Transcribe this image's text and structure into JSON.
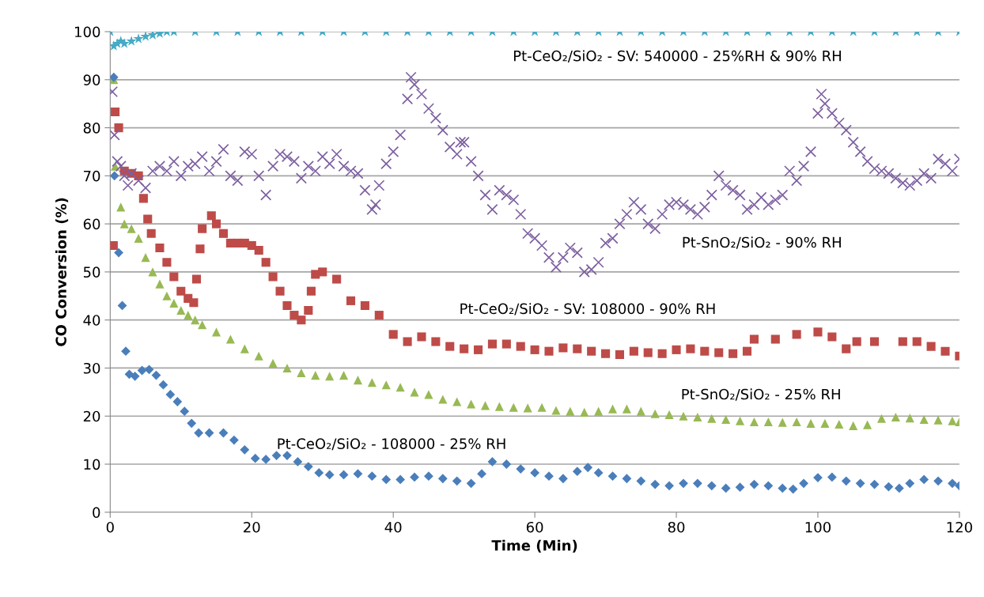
{
  "chart_data": {
    "type": "scatter",
    "xlabel": "Time (Min)",
    "ylabel": "CO Conversion (%)",
    "xlim": [
      0,
      120
    ],
    "xticks": [
      0,
      20,
      40,
      60,
      80,
      100,
      120
    ],
    "ylim": [
      0,
      100
    ],
    "yticks": [
      0,
      10,
      20,
      30,
      40,
      50,
      60,
      70,
      80,
      90,
      100
    ],
    "grid": "y",
    "series": [
      {
        "name": "Pt-CeO₂/SiO₂ - SV: 540000 - 25%RH & 90% RH",
        "color": "#46aac5",
        "marker": "star",
        "x": [
          0,
          0.5,
          1,
          1.5,
          2,
          3,
          4,
          5,
          6,
          7,
          8,
          9,
          12,
          15,
          18,
          21,
          24,
          27,
          30,
          33,
          36,
          39,
          42,
          45,
          48,
          51,
          54,
          57,
          60,
          63,
          66,
          69,
          72,
          75,
          78,
          81,
          84,
          87,
          90,
          93,
          96,
          99,
          102,
          105,
          108,
          111,
          114,
          117,
          120
        ],
        "values": [
          100,
          97,
          97.5,
          98,
          97.5,
          98,
          98.5,
          99,
          99.3,
          99.6,
          100,
          100,
          100,
          100,
          100,
          100,
          100,
          100,
          100,
          100,
          100,
          100,
          100,
          100,
          100,
          100,
          100,
          100,
          100,
          100,
          100,
          100,
          100,
          100,
          100,
          100,
          100,
          100,
          100,
          100,
          100,
          100,
          100,
          100,
          100,
          100,
          100,
          100,
          100
        ]
      },
      {
        "name": "Pt-SnO₂/SiO₂ - 90% RH",
        "color": "#7d60a0",
        "marker": "cross",
        "x": [
          0.3,
          0.6,
          1,
          1.5,
          2,
          2.5,
          3,
          4,
          5,
          6,
          7,
          8,
          9,
          10,
          11,
          12,
          13,
          14,
          15,
          16,
          17,
          18,
          19,
          20,
          21,
          22,
          23,
          24,
          25,
          26,
          27,
          28,
          29,
          30,
          31,
          32,
          33,
          34,
          35,
          36,
          37,
          37.5,
          38,
          39,
          40,
          41,
          42,
          42.5,
          43,
          44,
          45,
          46,
          47,
          48,
          49,
          49.5,
          50,
          51,
          52,
          53,
          54,
          55,
          56,
          57,
          58,
          59,
          60,
          61,
          62,
          63,
          64,
          65,
          66,
          67,
          68,
          69,
          70,
          71,
          72,
          73,
          74,
          75,
          76,
          77,
          78,
          79,
          80,
          81,
          82,
          83,
          84,
          85,
          86,
          87,
          88,
          89,
          90,
          91,
          92,
          93,
          94,
          95,
          96,
          97,
          98,
          99,
          100,
          100.5,
          101,
          102,
          103,
          104,
          105,
          106,
          107,
          108,
          109,
          110,
          111,
          112,
          113,
          114,
          115,
          116,
          117,
          118,
          119,
          120
        ],
        "values": [
          87.5,
          78.5,
          73,
          72,
          70,
          68,
          70.5,
          69,
          67.5,
          71,
          72,
          71,
          73,
          70,
          72,
          72.5,
          74,
          71,
          73,
          75.5,
          70,
          69,
          75,
          74.5,
          70,
          66,
          72,
          74.5,
          74,
          73,
          69.5,
          72,
          71,
          74,
          72.5,
          74.5,
          72,
          71,
          70.5,
          67,
          63,
          64,
          68,
          72.5,
          75,
          78.5,
          86,
          90.5,
          89,
          87,
          84,
          82,
          79.5,
          76,
          74.5,
          77,
          77,
          73,
          70,
          66,
          63,
          67,
          66,
          65,
          62,
          58,
          57,
          55.5,
          53,
          51,
          53,
          55,
          54,
          50,
          50.5,
          52,
          56,
          57,
          60,
          62,
          64.5,
          63,
          60,
          59,
          62,
          64,
          64.5,
          64,
          63,
          62,
          63.5,
          66,
          70,
          68,
          67,
          66,
          63,
          64,
          65.5,
          64,
          65,
          66,
          71,
          69,
          72,
          75,
          83,
          87,
          85,
          83,
          81,
          79.5,
          77,
          75,
          73,
          71.5,
          71,
          70.5,
          69.5,
          68.5,
          68,
          69,
          70.5,
          69.5,
          73.5,
          72.5,
          71,
          73.5
        ]
      },
      {
        "name": "Pt-CeO₂/SiO₂ - SV: 108000 - 90% RH",
        "color": "#be4b48",
        "marker": "square",
        "x": [
          0.45,
          0.7,
          1.2,
          2,
          3,
          4,
          4.7,
          5.3,
          5.8,
          7,
          8,
          9,
          10,
          11,
          11.8,
          12.2,
          12.7,
          13,
          14.3,
          15,
          16,
          17,
          18,
          19,
          20,
          21,
          22,
          23,
          24,
          25,
          26,
          27,
          28,
          28.4,
          29,
          30,
          32,
          34,
          36,
          38,
          40,
          42,
          44,
          46,
          48,
          50,
          52,
          54,
          56,
          58,
          60,
          62,
          64,
          66,
          68,
          70,
          72,
          74,
          76,
          78,
          80,
          82,
          84,
          86,
          88,
          90,
          91,
          94,
          97,
          100,
          102,
          104,
          105.5,
          108,
          112,
          114,
          116,
          118,
          120
        ],
        "values": [
          55.5,
          83.3,
          80,
          71,
          70.5,
          70,
          65.3,
          61,
          58,
          55,
          52,
          49,
          46,
          44.5,
          43.6,
          48.5,
          54.8,
          59,
          61.7,
          60,
          58,
          56,
          56,
          56,
          55.5,
          54.5,
          52,
          49,
          46,
          43,
          41,
          40,
          42,
          46,
          49.5,
          50,
          48.5,
          44,
          43,
          41,
          37,
          35.5,
          36.5,
          35.5,
          34.5,
          34,
          33.8,
          35,
          35,
          34.5,
          33.8,
          33.5,
          34.2,
          34,
          33.5,
          33,
          32.8,
          33.5,
          33.2,
          33,
          33.8,
          34,
          33.5,
          33.2,
          33,
          33.5,
          36,
          36,
          37,
          37.5,
          36.5,
          34,
          35.5,
          35.5,
          35.5,
          35.5,
          34.5,
          33.5,
          32.5
        ]
      },
      {
        "name": "Pt-SnO₂/SiO₂ - 25% RH",
        "color": "#98b954",
        "marker": "triangle",
        "x": [
          0.5,
          0.7,
          1.5,
          2,
          3,
          4,
          5,
          6,
          7,
          8,
          9,
          10,
          11,
          12,
          13,
          15,
          17,
          19,
          21,
          23,
          25,
          27,
          29,
          31,
          33,
          35,
          37,
          39,
          41,
          43,
          45,
          47,
          49,
          51,
          53,
          55,
          57,
          59,
          61,
          63,
          65,
          67,
          69,
          71,
          73,
          75,
          77,
          79,
          81,
          83,
          85,
          87,
          89,
          91,
          93,
          95,
          97,
          99,
          101,
          103,
          105,
          107,
          109,
          111,
          113,
          115,
          117,
          119,
          120
        ],
        "values": [
          90,
          72,
          63.5,
          60,
          59,
          57,
          53,
          50,
          47.5,
          45,
          43.5,
          42,
          41,
          40,
          39,
          37.5,
          36,
          34,
          32.5,
          31,
          30,
          29,
          28.5,
          28.3,
          28.5,
          27.5,
          27,
          26.5,
          26,
          25,
          24.5,
          23.5,
          23,
          22.5,
          22.2,
          22,
          21.8,
          21.7,
          21.8,
          21.2,
          21,
          20.8,
          21,
          21.5,
          21.5,
          21,
          20.5,
          20.3,
          20,
          19.8,
          19.5,
          19.3,
          19,
          18.8,
          18.8,
          18.7,
          18.8,
          18.5,
          18.5,
          18.3,
          18,
          18.2,
          19.5,
          19.8,
          19.6,
          19.3,
          19.2,
          19,
          18.8
        ]
      },
      {
        "name": "Pt-CeO₂/SiO₂ - 108000 - 25% RH",
        "color": "#4a7ebb",
        "marker": "diamond",
        "x": [
          0.5,
          0.6,
          1.2,
          1.7,
          2.2,
          2.7,
          3.5,
          4.5,
          5.5,
          6.5,
          7.5,
          8.5,
          9.5,
          10.5,
          11.5,
          12.5,
          14,
          16,
          17.5,
          19,
          20.5,
          22,
          23.5,
          25,
          26.5,
          28,
          29.5,
          31,
          33,
          35,
          37,
          39,
          41,
          43,
          45,
          47,
          49,
          51,
          52.5,
          54,
          56,
          58,
          60,
          62,
          64,
          66,
          67.5,
          69,
          71,
          73,
          75,
          77,
          79,
          81,
          83,
          85,
          87,
          89,
          91,
          93,
          95,
          96.5,
          98,
          100,
          102,
          104,
          106,
          108,
          110,
          111.5,
          113,
          115,
          117,
          119,
          120
        ],
        "values": [
          90.5,
          70,
          54,
          43,
          33.5,
          28.7,
          28.3,
          29.5,
          29.7,
          28.5,
          26.5,
          24.5,
          23,
          21,
          18.5,
          16.5,
          16.5,
          16.5,
          15,
          13,
          11.2,
          11,
          11.8,
          11.8,
          10.5,
          9.5,
          8.2,
          7.8,
          7.8,
          8,
          7.5,
          6.8,
          6.8,
          7.3,
          7.5,
          7,
          6.5,
          6,
          8,
          10.5,
          10,
          9,
          8.2,
          7.5,
          7,
          8.5,
          9.3,
          8.2,
          7.5,
          7,
          6.5,
          5.8,
          5.5,
          6,
          6,
          5.5,
          5,
          5.2,
          5.8,
          5.5,
          5,
          4.8,
          6,
          7.2,
          7.3,
          6.5,
          6,
          5.8,
          5.3,
          5,
          6,
          6.8,
          6.5,
          6,
          5.5
        ]
      }
    ]
  }
}
